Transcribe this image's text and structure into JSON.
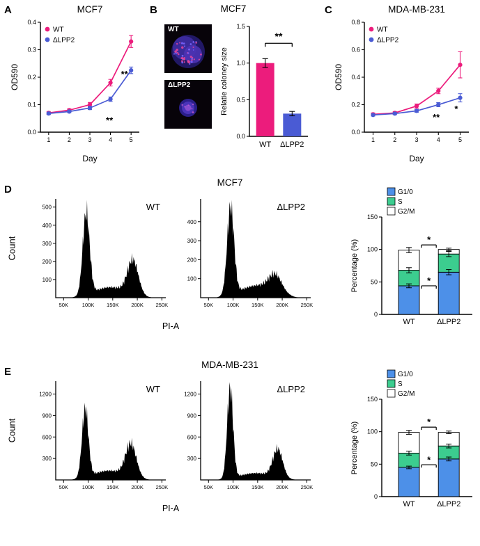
{
  "figure": {
    "background": "#ffffff"
  },
  "colors": {
    "wt_pink": "#EC1C7C",
    "lpp2_blue": "#4A5BD4",
    "g1_blue": "#4D90E8",
    "s_green": "#3CCD8F",
    "g2m_white": "#FFFFFF",
    "hist_black": "#000000"
  },
  "panels": {
    "a": {
      "label": "A"
    },
    "b": {
      "label": "B",
      "title": "MCF7",
      "images": [
        {
          "label": "WT"
        },
        {
          "label": "ΔLPP2"
        }
      ]
    },
    "c": {
      "label": "C"
    },
    "d": {
      "label": "D",
      "title": "MCF7",
      "count_label": "Count",
      "pia_label": "PI-A"
    },
    "e": {
      "label": "E",
      "title": "MDA-MB-231",
      "count_label": "Count",
      "pia_label": "PI-A"
    }
  },
  "chart_data": [
    {
      "id": "a-growth",
      "type": "line",
      "title": "MCF7",
      "xlabel": "Day",
      "ylabel": "OD590",
      "x": [
        1,
        2,
        3,
        4,
        5
      ],
      "xlim": [
        0.6,
        5.4
      ],
      "xticks": [
        1,
        2,
        3,
        4,
        5
      ],
      "ylim": [
        0,
        0.4
      ],
      "yticks": [
        0,
        0.1,
        0.2,
        0.3,
        0.4
      ],
      "ydec": 1,
      "series": [
        {
          "name": "WT",
          "color": "#EC1C7C",
          "values": [
            0.07,
            0.08,
            0.1,
            0.18,
            0.33
          ],
          "errors": [
            0.005,
            0.005,
            0.008,
            0.012,
            0.022
          ]
        },
        {
          "name": "ΔLPP2",
          "color": "#4A5BD4",
          "values": [
            0.068,
            0.075,
            0.088,
            0.12,
            0.225
          ],
          "errors": [
            0.004,
            0.004,
            0.006,
            0.008,
            0.012
          ]
        }
      ],
      "annotations": [
        {
          "x": 3.95,
          "y": 0.032,
          "text": "**"
        },
        {
          "x": 4.68,
          "y": 0.2,
          "text": "**"
        }
      ]
    },
    {
      "id": "b-colony",
      "type": "bar",
      "ylabel": "Relatie coloney size",
      "categories": [
        "WT",
        "ΔLPP2"
      ],
      "values": [
        1.0,
        0.31
      ],
      "errors": [
        0.06,
        0.03
      ],
      "bar_colors": [
        "#EC1C7C",
        "#4A5BD4"
      ],
      "ylim": [
        0,
        1.5
      ],
      "yticks": [
        0,
        0.5,
        1.0,
        1.5
      ],
      "ydec": 1,
      "bracket": {
        "y": 1.27,
        "label": "**"
      }
    },
    {
      "id": "c-growth",
      "type": "line",
      "title": "MDA-MB-231",
      "xlabel": "Day",
      "ylabel": "OD590",
      "x": [
        1,
        2,
        3,
        4,
        5
      ],
      "xlim": [
        0.6,
        5.4
      ],
      "xticks": [
        1,
        2,
        3,
        4,
        5
      ],
      "ylim": [
        0,
        0.8
      ],
      "yticks": [
        0,
        0.2,
        0.4,
        0.6,
        0.8
      ],
      "ydec": 1,
      "series": [
        {
          "name": "WT",
          "color": "#EC1C7C",
          "values": [
            0.13,
            0.14,
            0.19,
            0.3,
            0.49
          ],
          "errors": [
            0.01,
            0.01,
            0.015,
            0.02,
            0.095
          ]
        },
        {
          "name": "ΔLPP2",
          "color": "#4A5BD4",
          "values": [
            0.125,
            0.135,
            0.155,
            0.2,
            0.25
          ],
          "errors": [
            0.008,
            0.008,
            0.01,
            0.015,
            0.03
          ]
        }
      ],
      "annotations": [
        {
          "x": 3.9,
          "y": 0.085,
          "text": "**"
        },
        {
          "x": 4.82,
          "y": 0.148,
          "text": "*"
        }
      ]
    },
    {
      "id": "d-hist-wt",
      "type": "histogram",
      "series_label": "WT",
      "xlabel": "PI-A",
      "xrange": [
        34,
        258
      ],
      "xticks": [
        50,
        100,
        150,
        200,
        250
      ],
      "ylim": [
        0,
        545
      ],
      "yticks": [
        100,
        200,
        300,
        400,
        500
      ],
      "peaks": [
        {
          "mu": 96,
          "sigma": 7,
          "amp": 450
        },
        {
          "mu": 145,
          "sigma": 33,
          "amp": 58
        },
        {
          "mu": 191,
          "sigma": 11,
          "amp": 190
        }
      ],
      "start": 68,
      "end": 232
    },
    {
      "id": "d-hist-lpp2",
      "type": "histogram",
      "series_label": "ΔLPP2",
      "xlabel": "PI-A",
      "xrange": [
        34,
        258
      ],
      "xticks": [
        50,
        100,
        150,
        200,
        250
      ],
      "ylim": [
        0,
        520
      ],
      "yticks": [
        100,
        200,
        300,
        400
      ],
      "peaks": [
        {
          "mu": 95,
          "sigma": 7,
          "amp": 460
        },
        {
          "mu": 150,
          "sigma": 36,
          "amp": 64
        },
        {
          "mu": 186,
          "sigma": 13,
          "amp": 88
        }
      ],
      "start": 68,
      "end": 228
    },
    {
      "id": "d-stack",
      "type": "stacked_bar",
      "ylabel": "Percentage (%)",
      "ylim": [
        0,
        150
      ],
      "yticks": [
        0,
        50,
        100,
        150
      ],
      "segment_names": [
        "G1/0",
        "S",
        "G2/M"
      ],
      "segment_colors": [
        "#4D90E8",
        "#3CCD8F",
        "#FFFFFF"
      ],
      "bars": [
        {
          "label": "WT",
          "segments": [
            44,
            24,
            31
          ],
          "errors": [
            3,
            4,
            4
          ]
        },
        {
          "label": "ΔLPP2",
          "segments": [
            65,
            28,
            7
          ],
          "errors": [
            4,
            4,
            2
          ]
        }
      ],
      "brackets": [
        {
          "y": 107,
          "label": "*"
        },
        {
          "y": 44,
          "label": "*"
        }
      ]
    },
    {
      "id": "e-hist-wt",
      "type": "histogram",
      "series_label": "WT",
      "xlabel": "PI-A",
      "xrange": [
        34,
        258
      ],
      "xticks": [
        50,
        100,
        150,
        200,
        250
      ],
      "ylim": [
        0,
        1380
      ],
      "yticks": [
        300,
        600,
        900,
        1200
      ],
      "peaks": [
        {
          "mu": 94,
          "sigma": 6.5,
          "amp": 950
        },
        {
          "mu": 142,
          "sigma": 32,
          "amp": 130
        },
        {
          "mu": 187,
          "sigma": 11,
          "amp": 465
        }
      ],
      "start": 66,
      "end": 235
    },
    {
      "id": "e-hist-lpp2",
      "type": "histogram",
      "series_label": "ΔLPP2",
      "xlabel": "PI-A",
      "xrange": [
        34,
        258
      ],
      "xticks": [
        50,
        100,
        150,
        200,
        250
      ],
      "ylim": [
        0,
        1380
      ],
      "yticks": [
        300,
        600,
        900,
        1200
      ],
      "peaks": [
        {
          "mu": 94,
          "sigma": 6,
          "amp": 1250
        },
        {
          "mu": 146,
          "sigma": 33,
          "amp": 95
        },
        {
          "mu": 191,
          "sigma": 10,
          "amp": 400
        }
      ],
      "start": 68,
      "end": 235
    },
    {
      "id": "e-stack",
      "type": "stacked_bar",
      "ylabel": "Percentage (%)",
      "ylim": [
        0,
        150
      ],
      "yticks": [
        0,
        50,
        100,
        150
      ],
      "segment_names": [
        "G1/0",
        "S",
        "G2/M"
      ],
      "segment_colors": [
        "#4D90E8",
        "#3CCD8F",
        "#FFFFFF"
      ],
      "bars": [
        {
          "label": "WT",
          "segments": [
            45,
            22,
            32
          ],
          "errors": [
            2,
            3,
            3
          ]
        },
        {
          "label": "ΔLPP2",
          "segments": [
            58,
            20,
            21
          ],
          "errors": [
            3,
            3,
            2
          ]
        }
      ],
      "brackets": [
        {
          "y": 107,
          "label": "*"
        },
        {
          "y": 49,
          "label": "*"
        }
      ]
    }
  ]
}
